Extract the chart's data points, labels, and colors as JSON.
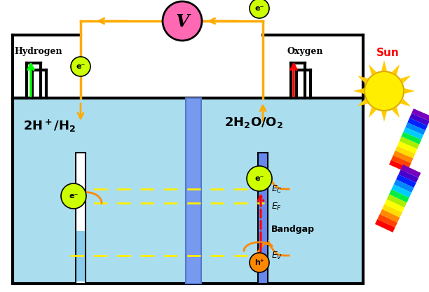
{
  "bg_color": "#ffffff",
  "water_color": "#aaddee",
  "wire_color": "#ffaa00",
  "voltmeter_color": "#ff69b4",
  "electron_color": "#ccff00",
  "hole_color": "#ff8800",
  "semiconductor_color": "#7799ee",
  "sun_color": "#ffee00",
  "sun_text_color": "#ff0000",
  "dash_color": "#ffee00",
  "orange_arrow": "#ff8800",
  "hydrogen_label": "Hydrogen",
  "oxygen_label": "Oxygen",
  "sun_label": "Sun",
  "bandgap_label": "Bandgap"
}
